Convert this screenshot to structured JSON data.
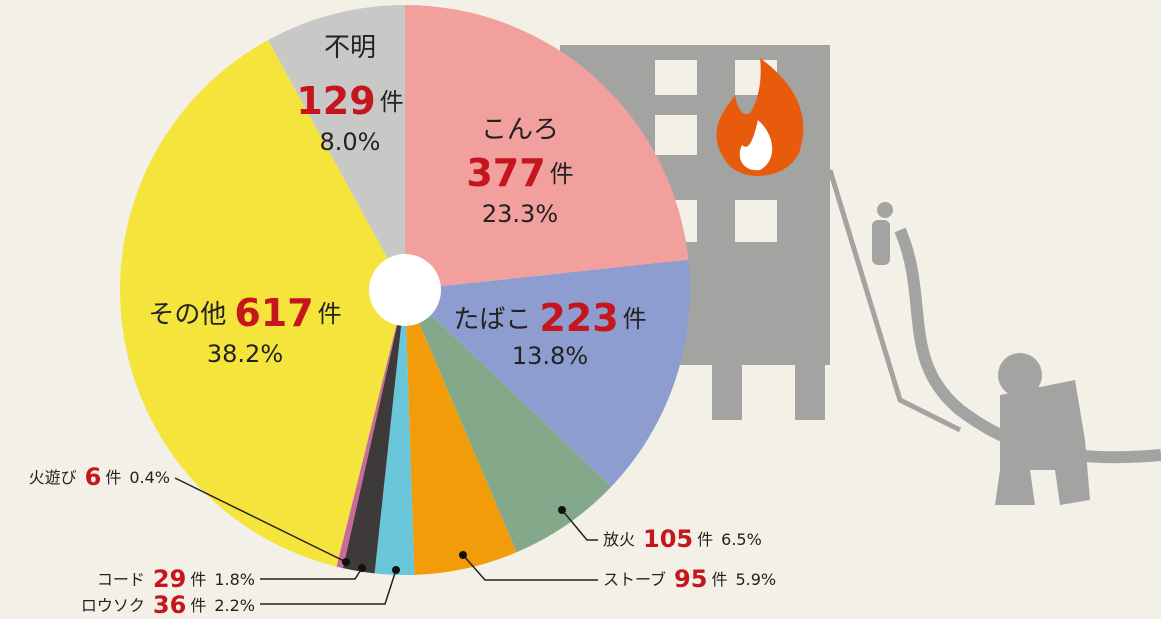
{
  "chart_data": {
    "type": "pie",
    "categories": [
      "こんろ",
      "たばこ",
      "放火",
      "ストーブ",
      "ロウソク",
      "コード",
      "火遊び",
      "その他",
      "不明"
    ],
    "values": [
      377,
      223,
      105,
      95,
      36,
      29,
      6,
      617,
      129
    ],
    "unit": "件",
    "percent_labels": [
      "23.3%",
      "13.8%",
      "6.5%",
      "5.9%",
      "2.2%",
      "1.8%",
      "0.4%",
      "38.2%",
      "8.0%"
    ],
    "colors": [
      "#f2a09e",
      "#8d9dd0",
      "#84a98a",
      "#f29c0a",
      "#6ac6d9",
      "#3f3a3a",
      "#c96a9a",
      "#f4e43c",
      "#c8c8c6"
    ]
  }
}
